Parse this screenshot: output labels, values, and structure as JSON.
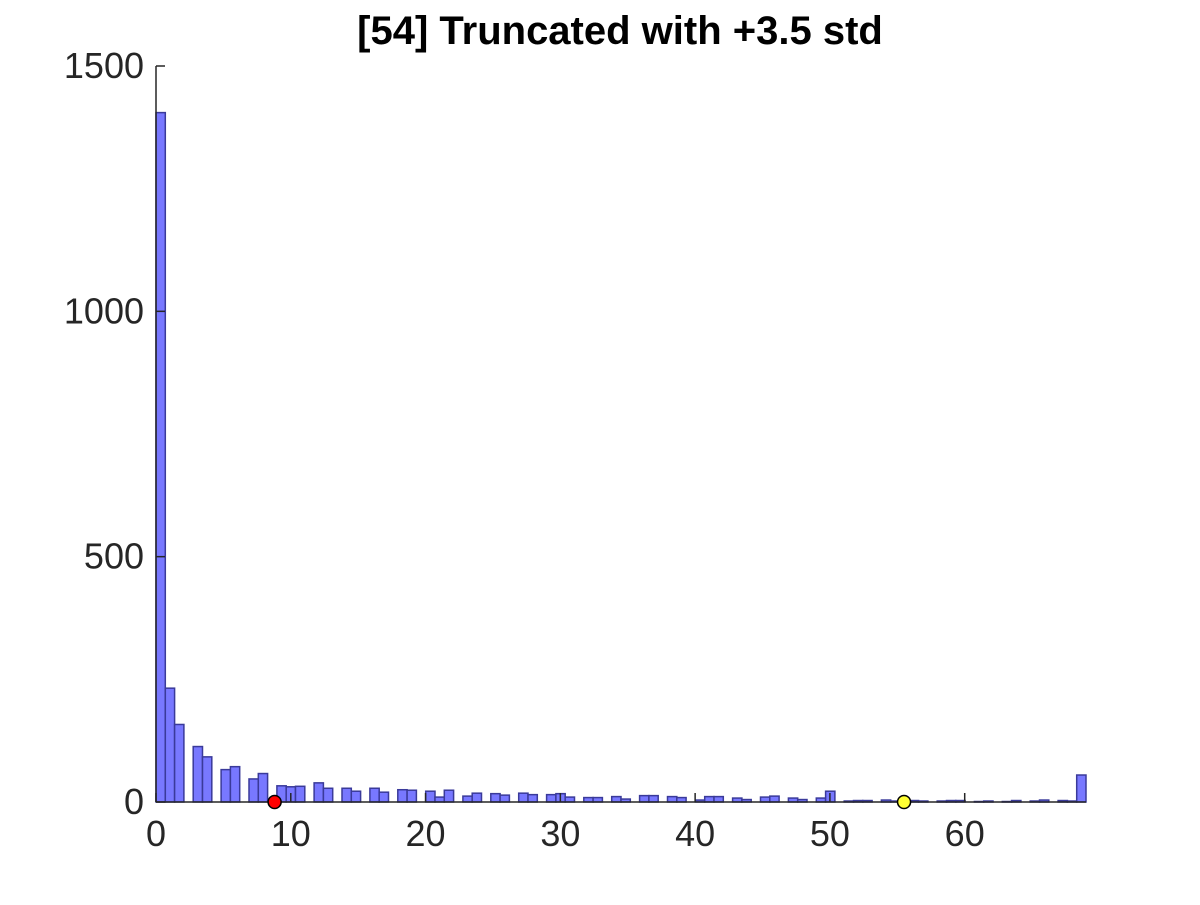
{
  "colors": {
    "bar_fill": "#7878ff",
    "bar_edge": "#3a3a9a",
    "marker_1": "#ff0000",
    "marker_2": "#ffff33",
    "axis": "#262626"
  },
  "chart_data": {
    "type": "bar",
    "title": "[54] Truncated with +3.5 std",
    "xlabel": "",
    "ylabel": "",
    "xlim": [
      0,
      69
    ],
    "ylim": [
      0,
      1500
    ],
    "x_ticks": [
      0,
      10,
      20,
      30,
      40,
      50,
      60
    ],
    "y_ticks": [
      0,
      500,
      1000,
      1500
    ],
    "x_tick_labels": [
      "0",
      "10",
      "20",
      "30",
      "40",
      "50",
      "60"
    ],
    "y_tick_labels": [
      "0",
      "500",
      "1000",
      "1500"
    ],
    "bin_width": 0.69,
    "bin_starts": [
      0,
      0.69,
      1.38,
      2.07,
      2.76,
      3.45,
      4.14,
      4.83,
      5.52,
      6.21,
      6.9,
      7.59,
      8.28,
      8.97,
      9.66,
      10.35,
      11.04,
      11.73,
      12.42,
      13.11,
      13.8,
      14.49,
      15.18,
      15.87,
      16.56,
      17.25,
      17.94,
      18.63,
      19.32,
      20.01,
      20.7,
      21.39,
      22.08,
      22.77,
      23.46,
      24.15,
      24.84,
      25.53,
      26.22,
      26.91,
      27.6,
      28.29,
      28.98,
      29.67,
      30.36,
      31.05,
      31.74,
      32.43,
      33.12,
      33.81,
      34.5,
      35.19,
      35.88,
      36.57,
      37.26,
      37.95,
      38.64,
      39.33,
      40.02,
      40.71,
      41.4,
      42.09,
      42.78,
      43.47,
      44.16,
      44.85,
      45.54,
      46.23,
      46.92,
      47.61,
      48.3,
      48.99,
      49.68,
      50.37,
      51.06,
      51.75,
      52.44,
      53.13,
      53.82,
      54.51,
      55.2,
      55.89,
      56.58,
      57.27,
      57.96,
      58.65,
      59.34,
      60.03,
      60.72,
      61.41,
      62.1,
      62.79,
      63.48,
      64.17,
      64.86,
      65.55,
      66.24,
      66.93,
      67.62,
      68.31
    ],
    "values": [
      1405,
      232,
      158,
      0,
      113,
      92,
      0,
      66,
      72,
      0,
      47,
      58,
      0,
      33,
      31,
      32,
      0,
      39,
      28,
      0,
      28,
      22,
      0,
      28,
      20,
      0,
      25,
      24,
      0,
      22,
      10,
      24,
      0,
      12,
      18,
      0,
      17,
      14,
      0,
      18,
      15,
      0,
      15,
      17,
      10,
      0,
      9,
      9,
      0,
      11,
      6,
      0,
      13,
      13,
      0,
      11,
      9,
      0,
      4,
      11,
      11,
      0,
      8,
      5,
      0,
      10,
      12,
      0,
      8,
      5,
      0,
      8,
      22,
      0,
      2,
      3,
      3,
      0,
      4,
      2,
      3,
      3,
      2,
      0,
      2,
      3,
      3,
      0,
      1,
      2,
      0,
      1,
      3,
      0,
      2,
      4,
      0,
      3,
      2,
      55
    ],
    "markers": [
      {
        "x": 8.8,
        "y": 0,
        "color": "#ff0000"
      },
      {
        "x": 55.5,
        "y": 0,
        "color": "#ffff33"
      }
    ]
  }
}
